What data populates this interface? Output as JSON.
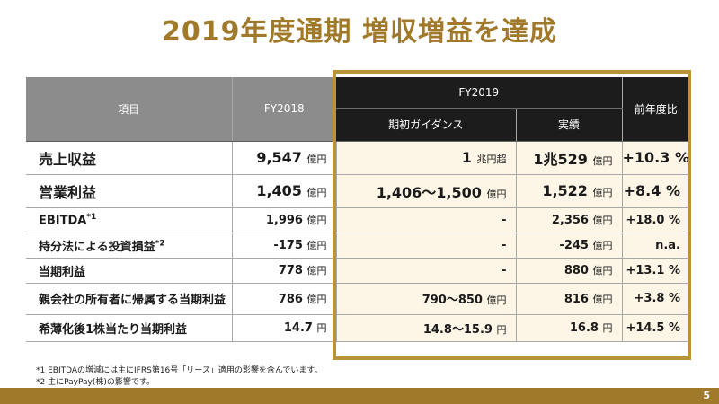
{
  "title": "2019年度通期 増収増益を達成",
  "header": {
    "item": "項目",
    "fy2018": "FY2018",
    "fy2019": "FY2019",
    "guidance": "期初ガイダンス",
    "actual": "実績",
    "yoy": "前年度比"
  },
  "rows": [
    {
      "label": "売上収益",
      "sup": "",
      "fy2018": "9,547",
      "fy2018_unit": "億円",
      "guidance": "1",
      "guidance_unit": "兆円超",
      "actual": "1兆529",
      "actual_unit": "億円",
      "yoy": "+10.3 %"
    },
    {
      "label": "営業利益",
      "sup": "",
      "fy2018": "1,405",
      "fy2018_unit": "億円",
      "guidance": "1,406〜1,500",
      "guidance_unit": "億円",
      "actual": "1,522",
      "actual_unit": "億円",
      "yoy": "+8.4 %"
    },
    {
      "label": "EBITDA",
      "sup": "*1",
      "fy2018": "1,996",
      "fy2018_unit": "億円",
      "guidance": "-",
      "guidance_unit": "",
      "actual": "2,356",
      "actual_unit": "億円",
      "yoy": "+18.0 %"
    },
    {
      "label": "持分法による投資損益",
      "sup": "*2",
      "fy2018": "-175",
      "fy2018_unit": "億円",
      "guidance": "-",
      "guidance_unit": "",
      "actual": "-245",
      "actual_unit": "億円",
      "yoy": "n.a."
    },
    {
      "label": "当期利益",
      "sup": "",
      "fy2018": "778",
      "fy2018_unit": "億円",
      "guidance": "-",
      "guidance_unit": "",
      "actual": "880",
      "actual_unit": "億円",
      "yoy": "+13.1 %"
    },
    {
      "label": "親会社の所有者に帰属する当期利益",
      "sup": "",
      "fy2018": "786",
      "fy2018_unit": "億円",
      "guidance": "790〜850",
      "guidance_unit": "億円",
      "actual": "816",
      "actual_unit": "億円",
      "yoy": "+3.8 %"
    },
    {
      "label": "希薄化後1株当たり当期利益",
      "sup": "",
      "fy2018": "14.7",
      "fy2018_unit": "円",
      "guidance": "14.8〜15.9",
      "guidance_unit": "円",
      "actual": "16.8",
      "actual_unit": "円",
      "yoy": "+14.5 %"
    }
  ],
  "footnotes": [
    "*1 EBITDAの増減には主にIFRS第16号「リース」適用の影響を含んでいます。",
    "*2 主にPayPay(株)の影響です。"
  ],
  "page_number": "5",
  "colors": {
    "accent": "#a0792a",
    "frame": "#b89339",
    "highlight_bg": "#fdf6e6",
    "header_gray": "#8c8c8c",
    "header_dark": "#1c1c1c"
  }
}
